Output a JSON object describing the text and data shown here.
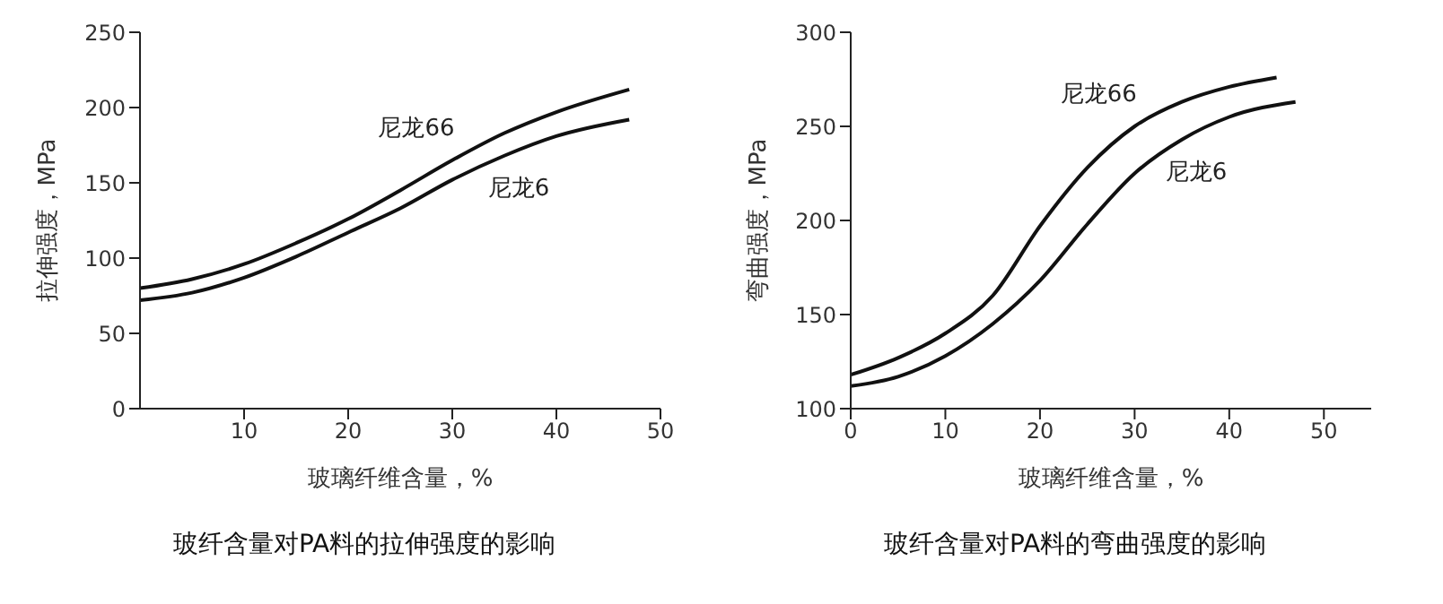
{
  "chart_data": [
    {
      "type": "line",
      "title": "玻纤含量对PA料的拉伸强度的影响",
      "xlabel": "玻璃纤维含量，%",
      "ylabel": "拉伸强度，MPa",
      "xlim": [
        0,
        50
      ],
      "xticks": [
        10,
        20,
        30,
        40,
        50
      ],
      "ylim": [
        0,
        250
      ],
      "yticks": [
        0,
        50,
        100,
        150,
        200,
        250
      ],
      "grid": false,
      "legend": false,
      "marker": "none",
      "line_style": "solid",
      "series": [
        {
          "name": "尼龙66",
          "color": "#111111",
          "x": [
            0,
            5,
            10,
            15,
            20,
            25,
            30,
            35,
            40,
            47
          ],
          "values": [
            80,
            86,
            96,
            110,
            126,
            145,
            165,
            183,
            197,
            212
          ]
        },
        {
          "name": "尼龙6",
          "color": "#111111",
          "x": [
            0,
            5,
            10,
            15,
            20,
            25,
            30,
            35,
            40,
            47
          ],
          "values": [
            72,
            77,
            87,
            101,
            117,
            133,
            152,
            168,
            181,
            192
          ]
        }
      ]
    },
    {
      "type": "line",
      "title": "玻纤含量对PA料的弯曲强度的影响",
      "xlabel": "玻璃纤维含量，%",
      "ylabel": "弯曲强度，MPa",
      "xlim": [
        0,
        55
      ],
      "xticks": [
        0,
        10,
        20,
        30,
        40,
        50
      ],
      "ylim": [
        100,
        300
      ],
      "yticks": [
        100,
        150,
        200,
        250,
        300
      ],
      "grid": false,
      "legend": false,
      "marker": "none",
      "line_style": "solid",
      "series": [
        {
          "name": "尼龙66",
          "color": "#111111",
          "x": [
            0,
            5,
            10,
            15,
            20,
            25,
            30,
            35,
            40,
            45
          ],
          "values": [
            118,
            127,
            140,
            160,
            197,
            228,
            250,
            263,
            271,
            276
          ]
        },
        {
          "name": "尼龙6",
          "color": "#111111",
          "x": [
            0,
            5,
            10,
            15,
            20,
            25,
            30,
            35,
            40,
            47
          ],
          "values": [
            112,
            117,
            128,
            145,
            168,
            198,
            225,
            243,
            255,
            263
          ]
        }
      ]
    }
  ]
}
